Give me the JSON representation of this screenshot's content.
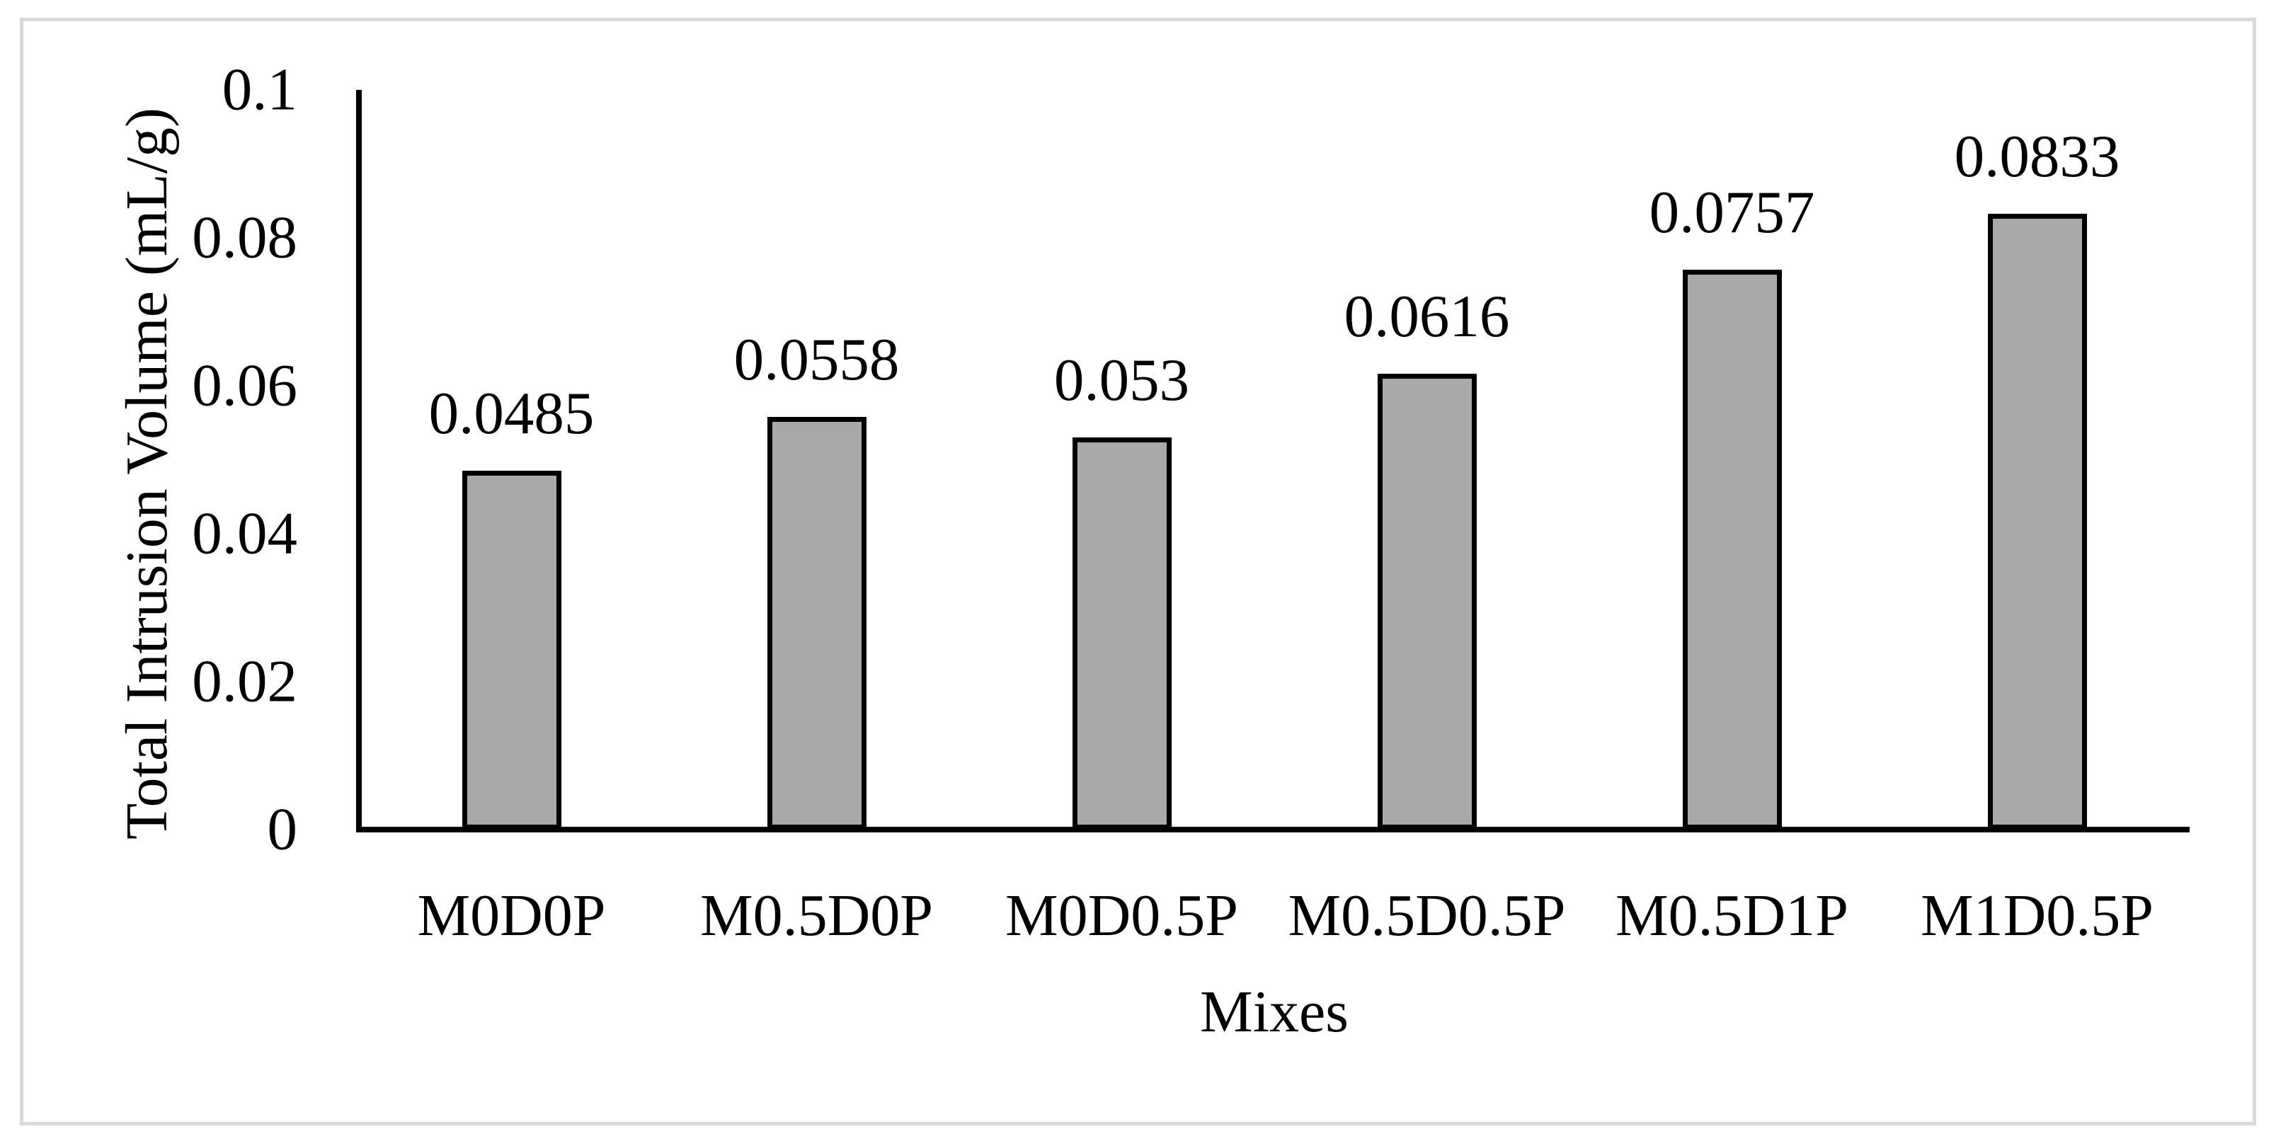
{
  "chart_data": {
    "type": "bar",
    "title": "",
    "xlabel": "Mixes",
    "ylabel": "Total Intrusion Volume (mL/g)",
    "categories": [
      "M0D0P",
      "M0.5D0P",
      "M0D0.5P",
      "M0.5D0.5P",
      "M0.5D1P",
      "M1D0.5P"
    ],
    "values": [
      0.0485,
      0.0558,
      0.053,
      0.0616,
      0.0757,
      0.0833
    ],
    "value_labels": [
      "0.0485",
      "0.0558",
      "0.053",
      "0.0616",
      "0.0757",
      "0.0833"
    ],
    "ylim": [
      0,
      0.1
    ],
    "yticks": [
      {
        "value": 0,
        "label": "0"
      },
      {
        "value": 0.02,
        "label": "0.02"
      },
      {
        "value": 0.04,
        "label": "0.04"
      },
      {
        "value": 0.06,
        "label": "0.06"
      },
      {
        "value": 0.08,
        "label": "0.08"
      },
      {
        "value": 0.1,
        "label": "0.1"
      }
    ],
    "grid": false,
    "legend": false,
    "bar_fill": "#a9a9a9",
    "bar_border": "#000000",
    "axis_color": "#000000",
    "text_color": "#000000",
    "figure_border_color": "#d9d9d9",
    "background_color": "#ffffff"
  }
}
